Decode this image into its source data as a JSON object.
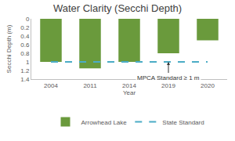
{
  "chart_data": {
    "type": "bar",
    "title": "Water Clarity (Secchi Depth)",
    "x_label": "Year",
    "y_label": "Secchi Depth (m)",
    "categories": [
      "2004",
      "2011",
      "2014",
      "2019",
      "2020"
    ],
    "series": [
      {
        "name": "Arrowhead Lake",
        "type": "bar",
        "color": "#6a9a3c",
        "values": [
          1.0,
          1.15,
          1.0,
          0.8,
          0.5
        ]
      },
      {
        "name": "State Standard",
        "type": "line",
        "color": "#4bacc6",
        "line_style": "dash",
        "values": [
          1,
          1,
          1,
          1,
          1
        ]
      }
    ],
    "ylim": [
      1.4,
      0
    ],
    "yticks": [
      0,
      0.2,
      0.4,
      0.6,
      0.8,
      1,
      1.2,
      1.4
    ],
    "annotations": [
      "MPCA Standard ≥ 1 m"
    ],
    "legend": "bottom",
    "grid": false
  }
}
